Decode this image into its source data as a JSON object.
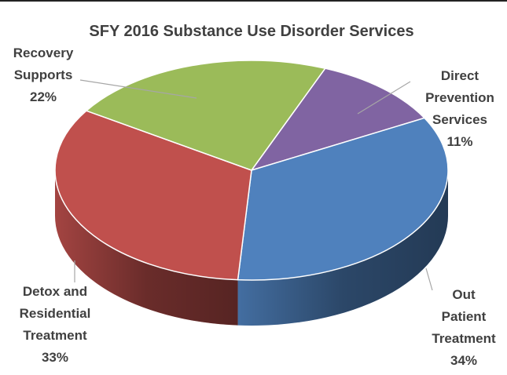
{
  "chart_data": {
    "type": "pie",
    "title": "SFY 2016 Substance Use Disorder Services",
    "categories": [
      "Direct\nPrevention\nServices",
      "Out\nPatient\nTreatment",
      "Detox and\nResidential\nTreatment",
      "Recovery\nSupports"
    ],
    "values": [
      11,
      34,
      33,
      22
    ],
    "value_labels": [
      "11%",
      "34%",
      "33%",
      "22%"
    ],
    "colors": [
      "#8064a2",
      "#4f81bd",
      "#c0504d",
      "#9bbb59"
    ]
  }
}
